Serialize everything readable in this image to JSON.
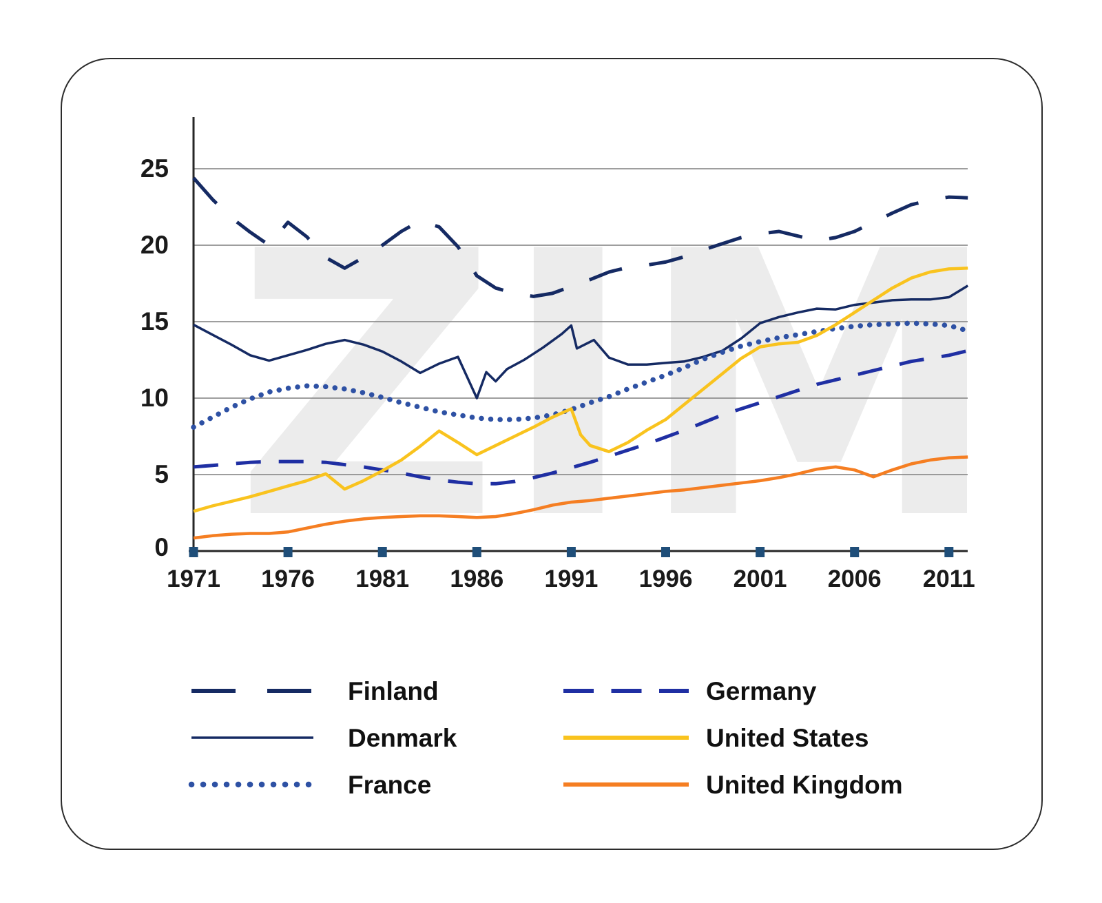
{
  "watermark": "ZIM",
  "axis_style": {
    "gridline_color": "#7f7f7f",
    "axis_color": "#262626",
    "tick_square_color": "#1F4E79",
    "label_color": "#1a1a1a",
    "watermark_color": "#ECECEC"
  },
  "chart_data": {
    "type": "line",
    "title": "",
    "xlabel": "",
    "ylabel": "",
    "x_ticks": [
      1971,
      1976,
      1981,
      1986,
      1991,
      1996,
      2001,
      2006,
      2011
    ],
    "y_ticks": [
      0,
      5,
      10,
      15,
      20,
      25
    ],
    "xlim": [
      1971,
      2012
    ],
    "ylim": [
      0,
      28.5
    ],
    "grid": "horizontal gridlines at 5,10,15,20,25",
    "legend_position": "bottom, two columns",
    "series": [
      {
        "name": "Denmark",
        "color": "#152A63",
        "style": "solid",
        "line_width": 3.5,
        "points": [
          [
            1971,
            14.8
          ],
          [
            1972,
            14.15
          ],
          [
            1973,
            13.5
          ],
          [
            1974,
            12.8
          ],
          [
            1975,
            12.45
          ],
          [
            1976,
            12.8
          ],
          [
            1977,
            13.15
          ],
          [
            1978,
            13.55
          ],
          [
            1979,
            13.8
          ],
          [
            1980,
            13.5
          ],
          [
            1981,
            13.05
          ],
          [
            1982,
            12.4
          ],
          [
            1983,
            11.65
          ],
          [
            1984,
            12.25
          ],
          [
            1985,
            12.7
          ],
          [
            1986,
            10.0
          ],
          [
            1986.5,
            11.7
          ],
          [
            1987,
            11.1
          ],
          [
            1987.6,
            11.9
          ],
          [
            1988.5,
            12.5
          ],
          [
            1989.5,
            13.3
          ],
          [
            1990.5,
            14.2
          ],
          [
            1991,
            14.75
          ],
          [
            1991.3,
            13.25
          ],
          [
            1992.2,
            13.8
          ],
          [
            1993,
            12.65
          ],
          [
            1994,
            12.2
          ],
          [
            1995,
            12.2
          ],
          [
            1996,
            12.3
          ],
          [
            1997,
            12.4
          ],
          [
            1998,
            12.7
          ],
          [
            1999,
            13.1
          ],
          [
            2000,
            13.9
          ],
          [
            2001,
            14.9
          ],
          [
            2002,
            15.3
          ],
          [
            2003,
            15.6
          ],
          [
            2004,
            15.85
          ],
          [
            2005,
            15.8
          ],
          [
            2006,
            16.1
          ],
          [
            2007,
            16.25
          ],
          [
            2008,
            16.4
          ],
          [
            2009,
            16.45
          ],
          [
            2010,
            16.45
          ],
          [
            2011,
            16.6
          ],
          [
            2012,
            17.35
          ]
        ]
      },
      {
        "name": "Finland",
        "color": "#152A63",
        "style": "long-dash",
        "line_width": 5,
        "points": [
          [
            1971,
            24.4
          ],
          [
            1972,
            23.0
          ],
          [
            1973,
            21.8
          ],
          [
            1974,
            20.85
          ],
          [
            1975,
            20.0
          ],
          [
            1976,
            21.5
          ],
          [
            1977,
            20.55
          ],
          [
            1978,
            19.2
          ],
          [
            1979,
            18.5
          ],
          [
            1980,
            19.2
          ],
          [
            1981,
            20.0
          ],
          [
            1982,
            20.9
          ],
          [
            1983,
            21.6
          ],
          [
            1984,
            21.2
          ],
          [
            1985,
            19.9
          ],
          [
            1986,
            18.0
          ],
          [
            1987,
            17.2
          ],
          [
            1988,
            16.85
          ],
          [
            1989,
            16.65
          ],
          [
            1990,
            16.85
          ],
          [
            1991,
            17.3
          ],
          [
            1992,
            17.75
          ],
          [
            1993,
            18.25
          ],
          [
            1994,
            18.55
          ],
          [
            1995,
            18.7
          ],
          [
            1996,
            18.9
          ],
          [
            1997,
            19.25
          ],
          [
            1998,
            19.7
          ],
          [
            1999,
            20.1
          ],
          [
            2000,
            20.5
          ],
          [
            2001,
            20.75
          ],
          [
            2002,
            20.9
          ],
          [
            2003,
            20.6
          ],
          [
            2004,
            20.3
          ],
          [
            2005,
            20.5
          ],
          [
            2006,
            20.9
          ],
          [
            2007,
            21.5
          ],
          [
            2008,
            22.1
          ],
          [
            2009,
            22.65
          ],
          [
            2010,
            22.95
          ],
          [
            2011,
            23.15
          ],
          [
            2012,
            23.1
          ]
        ]
      },
      {
        "name": "Germany",
        "color": "#1F2FA3",
        "style": "dash",
        "line_width": 5,
        "points": [
          [
            1971,
            5.5
          ],
          [
            1972,
            5.6
          ],
          [
            1973,
            5.7
          ],
          [
            1974,
            5.8
          ],
          [
            1975,
            5.85
          ],
          [
            1976,
            5.85
          ],
          [
            1977,
            5.85
          ],
          [
            1978,
            5.8
          ],
          [
            1979,
            5.65
          ],
          [
            1980,
            5.5
          ],
          [
            1981,
            5.3
          ],
          [
            1982,
            5.1
          ],
          [
            1983,
            4.85
          ],
          [
            1984,
            4.65
          ],
          [
            1985,
            4.5
          ],
          [
            1986,
            4.4
          ],
          [
            1987,
            4.4
          ],
          [
            1988,
            4.55
          ],
          [
            1989,
            4.8
          ],
          [
            1990,
            5.1
          ],
          [
            1991,
            5.45
          ],
          [
            1992,
            5.8
          ],
          [
            1993,
            6.2
          ],
          [
            1994,
            6.6
          ],
          [
            1995,
            7.0
          ],
          [
            1996,
            7.45
          ],
          [
            1997,
            7.9
          ],
          [
            1998,
            8.4
          ],
          [
            1999,
            8.9
          ],
          [
            2000,
            9.3
          ],
          [
            2001,
            9.7
          ],
          [
            2002,
            10.1
          ],
          [
            2003,
            10.5
          ],
          [
            2004,
            10.9
          ],
          [
            2005,
            11.2
          ],
          [
            2006,
            11.5
          ],
          [
            2007,
            11.8
          ],
          [
            2008,
            12.1
          ],
          [
            2009,
            12.4
          ],
          [
            2010,
            12.6
          ],
          [
            2011,
            12.8
          ],
          [
            2012,
            13.1
          ]
        ]
      },
      {
        "name": "France",
        "color": "#2E51A4",
        "style": "dotted",
        "line_width": 7.5,
        "points": [
          [
            1971,
            8.1
          ],
          [
            1972,
            8.75
          ],
          [
            1973,
            9.4
          ],
          [
            1974,
            9.95
          ],
          [
            1975,
            10.4
          ],
          [
            1976,
            10.65
          ],
          [
            1977,
            10.8
          ],
          [
            1978,
            10.75
          ],
          [
            1979,
            10.6
          ],
          [
            1980,
            10.35
          ],
          [
            1981,
            10.05
          ],
          [
            1982,
            9.7
          ],
          [
            1983,
            9.4
          ],
          [
            1984,
            9.1
          ],
          [
            1985,
            8.9
          ],
          [
            1986,
            8.7
          ],
          [
            1987,
            8.6
          ],
          [
            1988,
            8.6
          ],
          [
            1989,
            8.7
          ],
          [
            1990,
            8.9
          ],
          [
            1991,
            9.25
          ],
          [
            1992,
            9.7
          ],
          [
            1993,
            10.1
          ],
          [
            1994,
            10.6
          ],
          [
            1995,
            11.05
          ],
          [
            1996,
            11.5
          ],
          [
            1997,
            12.0
          ],
          [
            1998,
            12.55
          ],
          [
            1999,
            13.0
          ],
          [
            2000,
            13.4
          ],
          [
            2001,
            13.7
          ],
          [
            2002,
            13.95
          ],
          [
            2003,
            14.15
          ],
          [
            2004,
            14.35
          ],
          [
            2005,
            14.55
          ],
          [
            2006,
            14.7
          ],
          [
            2007,
            14.8
          ],
          [
            2008,
            14.85
          ],
          [
            2009,
            14.9
          ],
          [
            2010,
            14.85
          ],
          [
            2011,
            14.75
          ],
          [
            2012,
            14.4
          ]
        ]
      },
      {
        "name": "United Kingdom",
        "color": "#F57E22",
        "style": "solid",
        "line_width": 4.5,
        "points": [
          [
            1971,
            0.85
          ],
          [
            1972,
            1.0
          ],
          [
            1973,
            1.1
          ],
          [
            1974,
            1.15
          ],
          [
            1975,
            1.15
          ],
          [
            1976,
            1.25
          ],
          [
            1977,
            1.5
          ],
          [
            1978,
            1.75
          ],
          [
            1979,
            1.95
          ],
          [
            1980,
            2.1
          ],
          [
            1981,
            2.2
          ],
          [
            1982,
            2.25
          ],
          [
            1983,
            2.3
          ],
          [
            1984,
            2.3
          ],
          [
            1985,
            2.25
          ],
          [
            1986,
            2.2
          ],
          [
            1987,
            2.25
          ],
          [
            1988,
            2.45
          ],
          [
            1989,
            2.7
          ],
          [
            1990,
            3.0
          ],
          [
            1991,
            3.2
          ],
          [
            1992,
            3.3
          ],
          [
            1993,
            3.45
          ],
          [
            1994,
            3.6
          ],
          [
            1995,
            3.75
          ],
          [
            1996,
            3.9
          ],
          [
            1997,
            4.0
          ],
          [
            1998,
            4.15
          ],
          [
            1999,
            4.3
          ],
          [
            2000,
            4.45
          ],
          [
            2001,
            4.6
          ],
          [
            2002,
            4.8
          ],
          [
            2003,
            5.05
          ],
          [
            2004,
            5.35
          ],
          [
            2005,
            5.5
          ],
          [
            2006,
            5.3
          ],
          [
            2007,
            4.85
          ],
          [
            2008,
            5.3
          ],
          [
            2009,
            5.7
          ],
          [
            2010,
            5.95
          ],
          [
            2011,
            6.1
          ],
          [
            2012,
            6.15
          ]
        ]
      },
      {
        "name": "United States",
        "color": "#F9C31E",
        "style": "solid",
        "line_width": 4.5,
        "points": [
          [
            1971,
            2.6
          ],
          [
            1972,
            2.95
          ],
          [
            1973,
            3.25
          ],
          [
            1974,
            3.55
          ],
          [
            1975,
            3.9
          ],
          [
            1976,
            4.25
          ],
          [
            1977,
            4.6
          ],
          [
            1978,
            5.05
          ],
          [
            1979,
            4.05
          ],
          [
            1980,
            4.6
          ],
          [
            1981,
            5.25
          ],
          [
            1982,
            5.95
          ],
          [
            1983,
            6.85
          ],
          [
            1984,
            7.85
          ],
          [
            1985,
            7.1
          ],
          [
            1986,
            6.3
          ],
          [
            1987,
            6.9
          ],
          [
            1988,
            7.5
          ],
          [
            1989,
            8.1
          ],
          [
            1990,
            8.75
          ],
          [
            1991,
            9.3
          ],
          [
            1991.5,
            7.6
          ],
          [
            1992,
            6.9
          ],
          [
            1993,
            6.5
          ],
          [
            1994,
            7.1
          ],
          [
            1995,
            7.9
          ],
          [
            1996,
            8.6
          ],
          [
            1997,
            9.6
          ],
          [
            1998,
            10.6
          ],
          [
            1999,
            11.6
          ],
          [
            2000,
            12.6
          ],
          [
            2001,
            13.35
          ],
          [
            2002,
            13.55
          ],
          [
            2003,
            13.65
          ],
          [
            2004,
            14.1
          ],
          [
            2005,
            14.8
          ],
          [
            2006,
            15.6
          ],
          [
            2007,
            16.4
          ],
          [
            2008,
            17.2
          ],
          [
            2009,
            17.85
          ],
          [
            2010,
            18.25
          ],
          [
            2011,
            18.45
          ],
          [
            2012,
            18.5
          ]
        ]
      }
    ],
    "legend_columns": [
      [
        "Finland",
        "Denmark",
        "France"
      ],
      [
        "Germany",
        "United States",
        "United Kingdom"
      ]
    ]
  }
}
